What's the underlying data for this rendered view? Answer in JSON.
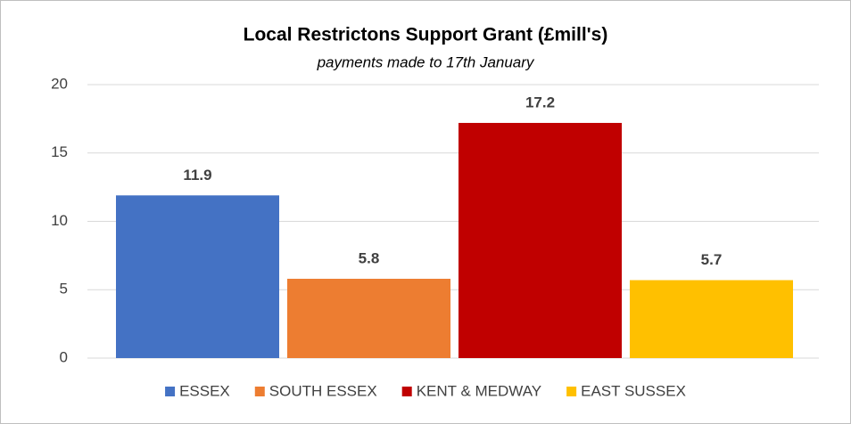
{
  "chart_data": {
    "type": "bar",
    "title": "Local Restrictons Support Grant (£mill's)",
    "subtitle": "payments made to 17th January",
    "series": [
      {
        "name": "ESSEX",
        "color": "#4472c4",
        "values": [
          11.9
        ]
      },
      {
        "name": "SOUTH ESSEX",
        "color": "#ed7d31",
        "values": [
          5.8
        ]
      },
      {
        "name": "KENT & MEDWAY",
        "color": "#c00000",
        "values": [
          17.2
        ]
      },
      {
        "name": "EAST SUSSEX",
        "color": "#ffc000",
        "values": [
          5.7
        ]
      }
    ],
    "ylim": [
      0,
      20
    ],
    "yticks": [
      0,
      5,
      10,
      15,
      20
    ],
    "grid": true,
    "legend": "bottom"
  }
}
